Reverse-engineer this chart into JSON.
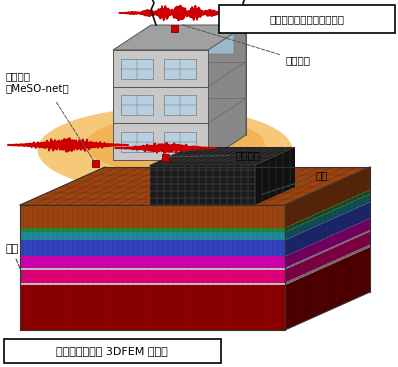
{
  "title_top": "地盤－建物系観測点の概要",
  "title_bottom": "地盤－建物系の 3DFEM モデル",
  "label_building_top": "建物上部",
  "label_building_1f": "建物１階",
  "label_free_ground": "自由地盤\n（MeSO-net）",
  "label_ground": "地盤",
  "label_building": "建物",
  "bg_color": "#ffffff",
  "layers_front": [
    "#8B0000",
    "#c0c0c0",
    "#e0006a",
    "#c0c0c0",
    "#cc00aa",
    "#4455bb",
    "#228899",
    "#336600",
    "#994400"
  ],
  "layers_side": [
    "#5a0000",
    "#808080",
    "#880044",
    "#808080",
    "#880077",
    "#2a3588",
    "#115566",
    "#224400",
    "#662200"
  ],
  "layers_top": [
    "#994400",
    "#993300",
    "#884400",
    "#774400",
    "#664400",
    "#553300",
    "#443300",
    "#443300",
    "#993300"
  ],
  "layer_heights": [
    55,
    4,
    16,
    2,
    16,
    20,
    10,
    5,
    28
  ],
  "fig_width": 3.98,
  "fig_height": 3.67,
  "dpi": 100
}
